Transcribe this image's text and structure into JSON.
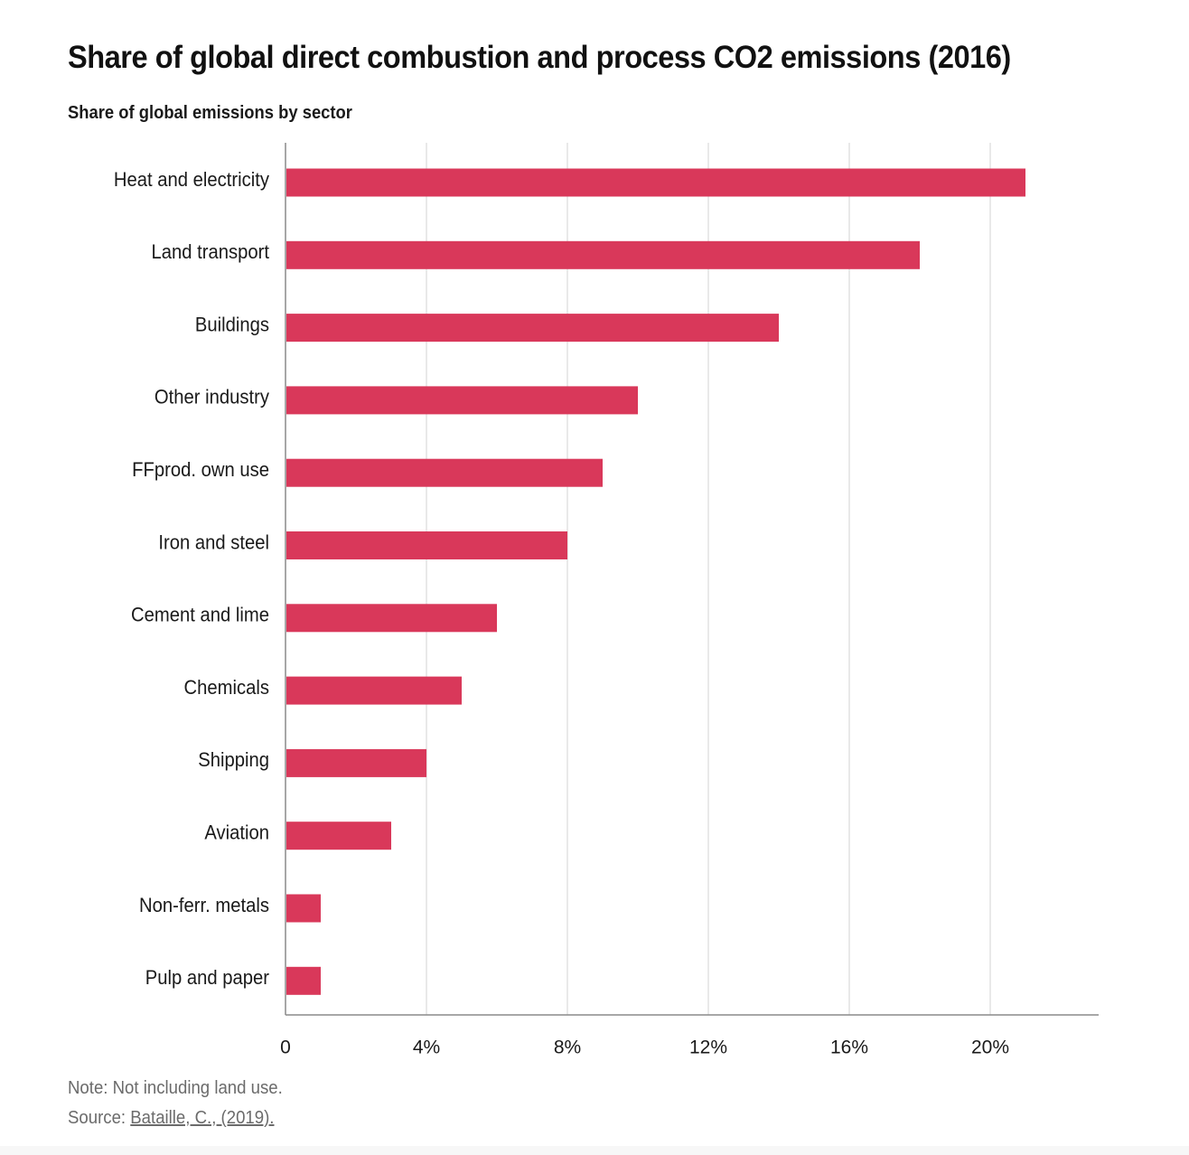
{
  "chart_data": {
    "type": "bar",
    "orientation": "horizontal",
    "title": "Share of global direct combustion and process CO2 emissions (2016)",
    "subtitle": "Share of global emissions by sector",
    "categories": [
      "Heat and electricity",
      "Land transport",
      "Buildings",
      "Other industry",
      "FFprod. own use",
      "Iron and steel",
      "Cement and lime",
      "Chemicals",
      "Shipping",
      "Aviation",
      "Non-ferr. metals",
      "Pulp and paper"
    ],
    "values": [
      21,
      18,
      14,
      10,
      9,
      8,
      6,
      5,
      4,
      3,
      1,
      1
    ],
    "xlim": [
      0,
      23
    ],
    "xticks": [
      0,
      4,
      8,
      12,
      16,
      20
    ],
    "xtick_labels": [
      "0",
      "4%",
      "8%",
      "12%",
      "16%",
      "20%"
    ],
    "xlabel": "",
    "ylabel": "",
    "grid": true,
    "bar_color": "#d9385a"
  },
  "footer": {
    "note": "Note: Not including land use.",
    "source_prefix": "Source: ",
    "source_link": "Bataille, C., (2019)."
  }
}
